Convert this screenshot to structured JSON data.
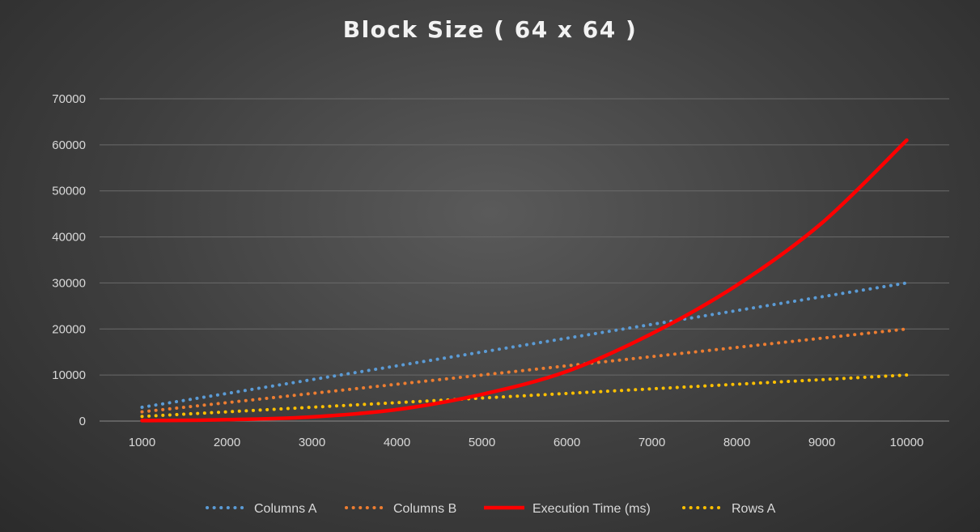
{
  "chart_data": {
    "type": "line",
    "title": "Block Size ( 64 x 64 )",
    "xlabel": "",
    "ylabel": "",
    "x": [
      1000,
      2000,
      3000,
      4000,
      5000,
      6000,
      7000,
      8000,
      9000,
      10000
    ],
    "x_tick_labels": [
      "1000",
      "2000",
      "3000",
      "4000",
      "5000",
      "6000",
      "7000",
      "8000",
      "9000",
      "10000"
    ],
    "y_tick_labels": [
      "0",
      "10000",
      "20000",
      "30000",
      "40000",
      "50000",
      "60000",
      "70000"
    ],
    "ylim": [
      0,
      70000
    ],
    "grid": "horizontal",
    "legend_position": "bottom",
    "series": [
      {
        "name": "Columns A",
        "style": "dotted",
        "color": "#5b9bd5",
        "values": [
          3000,
          6000,
          9000,
          12000,
          15000,
          18000,
          21000,
          24000,
          27000,
          30000
        ]
      },
      {
        "name": "Columns B",
        "style": "dotted",
        "color": "#ed7d31",
        "values": [
          2000,
          4000,
          6000,
          8000,
          10000,
          12000,
          14000,
          16000,
          18000,
          20000
        ]
      },
      {
        "name": "Execution Time (ms)",
        "style": "solid",
        "color": "#ff0000",
        "values": [
          100,
          300,
          900,
          2500,
          5800,
          10800,
          19000,
          29500,
          43000,
          61000
        ]
      },
      {
        "name": "Rows A",
        "style": "dotted",
        "color": "#ffc000",
        "values": [
          1000,
          2000,
          3000,
          4000,
          5000,
          6000,
          7000,
          8000,
          9000,
          10000
        ]
      }
    ]
  }
}
